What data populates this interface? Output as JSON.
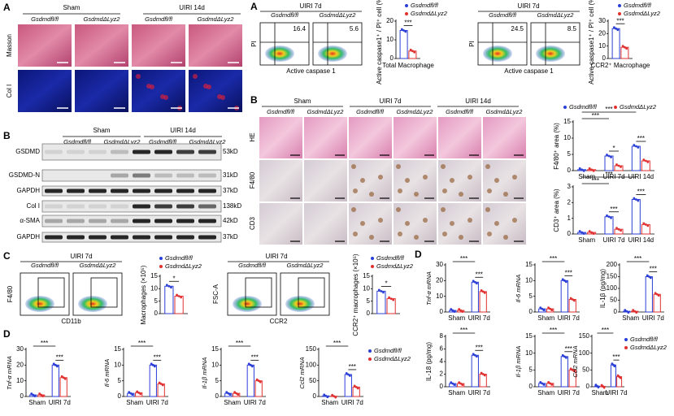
{
  "panel_labels": [
    "A",
    "A",
    "B",
    "B",
    "C",
    "D",
    "D"
  ],
  "masson": {
    "groups": [
      "Sham",
      "UIRI 14d"
    ],
    "genotypes": [
      "Gsdmdfl/fl",
      "GsdmdΔLyz2",
      "Gsdmdfl/fl",
      "GsdmdΔLyz2"
    ],
    "rows": [
      "Masson",
      "Col I"
    ]
  },
  "blot": {
    "groups": [
      "Sham",
      "UIRI 14d"
    ],
    "genotypes": [
      "Gsdmdfl/fl",
      "GsdmdΔLyz2",
      "Gsdmdfl/fl",
      "GsdmdΔLyz2"
    ],
    "rows": [
      {
        "label": "GSDMD",
        "size": "53kD"
      },
      {
        "label": "GSDMD-N",
        "size": "31kD"
      },
      {
        "label": "GAPDH",
        "size": "37kD"
      },
      {
        "label": "Col I",
        "size": "138kD"
      },
      {
        "label": "α-SMA",
        "size": "42kD"
      },
      {
        "label": "GAPDH",
        "size": "37kD"
      }
    ]
  },
  "flow": [
    {
      "title": "UIRI 7d",
      "genotypes": [
        "Gsdmdfl/fl",
        "GsdmdΔLyz2"
      ],
      "y_label": "PI",
      "x_label": "Active caspase 1",
      "gate_values": [
        16.4,
        5.6
      ]
    },
    {
      "title": "UIRI 7d",
      "genotypes": [
        "Gsdmdfl/fl",
        "GsdmdΔLyz2"
      ],
      "y_label": "PI",
      "x_label": "Active caspase 1",
      "gate_values": [
        24.5,
        8.5
      ]
    },
    {
      "title": "UIRI 7d",
      "genotypes": [
        "Gsdmdfl/fl",
        "GsdmdΔLyz2"
      ],
      "y_label": "F4/80",
      "x_label": "CD11b"
    },
    {
      "title": "UIRI 7d",
      "genotypes": [
        "Gsdmdfl/fl",
        "GsdmdΔLyz2"
      ],
      "y_label": "FSC-A",
      "x_label": "CCR2"
    }
  ],
  "histology": {
    "groups": [
      "Sham",
      "UIRI 7d",
      "UIRI 14d"
    ],
    "genotypes": [
      "Gsdmdfl/fl",
      "GsdmdΔLyz2",
      "Gsdmdfl/fl",
      "GsdmdΔLyz2",
      "Gsdmdfl/fl",
      "GsdmdΔLyz2"
    ],
    "rows": [
      "HE",
      "F4/80",
      "CD3"
    ]
  },
  "chart_data": [
    {
      "type": "bar",
      "y_label": "Active caspase1⁺ / PI⁺ cell (%)",
      "x_label": "Total Macrophage",
      "categories": [
        null
      ],
      "series": [
        {
          "name": "Gsdmdfl/fl",
          "color": "#2b3fd6",
          "values": [
            15
          ]
        },
        {
          "name": "GsdmdΔLyz2",
          "color": "#e03030",
          "values": [
            4
          ]
        }
      ],
      "ylim": [
        0,
        20
      ],
      "yticks": [
        0,
        10,
        20
      ],
      "annotations": [
        "***"
      ],
      "legend": "top"
    },
    {
      "type": "bar",
      "y_label": "Active caspase1⁺ / PI⁺ cell (%)",
      "x_label": "CCR2⁺ Macrophage",
      "categories": [
        null
      ],
      "series": [
        {
          "name": "Gsdmdfl/fl",
          "color": "#2b3fd6",
          "values": [
            24
          ]
        },
        {
          "name": "GsdmdΔLyz2",
          "color": "#e03030",
          "values": [
            9
          ]
        }
      ],
      "ylim": [
        0,
        30
      ],
      "yticks": [
        0,
        10,
        20,
        30
      ],
      "annotations": [
        "***"
      ],
      "legend": "top"
    },
    {
      "type": "bar",
      "y_label": "F4/80⁺ area (%)",
      "categories": [
        "Sham",
        "UIRI 7d",
        "UIRI 14d"
      ],
      "series": [
        {
          "name": "Gsdmdfl/fl",
          "color": "#2b3fd6",
          "values": [
            0.3,
            4.5,
            7.5
          ]
        },
        {
          "name": "GsdmdΔLyz2",
          "color": "#e03030",
          "values": [
            0.3,
            1.5,
            3
          ]
        }
      ],
      "ylim": [
        0,
        15
      ],
      "yticks": [
        0,
        5,
        10,
        15
      ],
      "annotations": [
        "***",
        "***",
        "*",
        "***"
      ],
      "legend": "top"
    },
    {
      "type": "bar",
      "y_label": "CD3⁺ area (%)",
      "categories": [
        "Sham",
        "UIRI 7d",
        "UIRI 14d"
      ],
      "series": [
        {
          "color": "#2b3fd6",
          "values": [
            0.1,
            1.1,
            2.2
          ]
        },
        {
          "color": "#e03030",
          "values": [
            0.1,
            0.3,
            0.6
          ]
        }
      ],
      "ylim": [
        0,
        3
      ],
      "yticks": [
        0,
        1,
        2,
        3
      ],
      "annotations": [
        "***",
        "***",
        "***",
        "***"
      ]
    },
    {
      "type": "bar",
      "y_label": "Macrophages (×10⁵)",
      "categories": [
        null
      ],
      "series": [
        {
          "name": "Gsdmdfl/fl",
          "color": "#2b3fd6",
          "values": [
            11
          ]
        },
        {
          "name": "GsdmdΔLyz2",
          "color": "#e03030",
          "values": [
            7
          ]
        }
      ],
      "ylim": [
        0,
        15
      ],
      "yticks": [
        0,
        5,
        10,
        15
      ],
      "annotations": [
        "*"
      ],
      "legend": "top"
    },
    {
      "type": "bar",
      "y_label": "CCR2⁺ macrophages (×10⁵)",
      "categories": [
        null
      ],
      "series": [
        {
          "name": "Gsdmdfl/fl",
          "color": "#2b3fd6",
          "values": [
            9
          ]
        },
        {
          "name": "GsdmdΔLyz2",
          "color": "#e03030",
          "values": [
            6
          ]
        }
      ],
      "ylim": [
        0,
        15
      ],
      "yticks": [
        0,
        5,
        10,
        15
      ],
      "annotations": [
        "*"
      ],
      "legend": "top"
    },
    {
      "type": "bar",
      "y_label": "Tnf-α mRNA",
      "categories": [
        "Sham",
        "UIRI 7d"
      ],
      "series": [
        {
          "color": "#2b3fd6",
          "values": [
            1,
            20
          ]
        },
        {
          "color": "#e03030",
          "values": [
            1,
            12
          ]
        }
      ],
      "ylim": [
        0,
        30
      ],
      "yticks": [
        0,
        10,
        20,
        30
      ],
      "annotations": [
        "***",
        "***"
      ]
    },
    {
      "type": "bar",
      "y_label": "Il-6 mRNA",
      "categories": [
        "Sham",
        "UIRI 7d"
      ],
      "series": [
        {
          "color": "#2b3fd6",
          "values": [
            1,
            10
          ]
        },
        {
          "color": "#e03030",
          "values": [
            1.2,
            4
          ]
        }
      ],
      "ylim": [
        0,
        15
      ],
      "yticks": [
        0,
        5,
        10,
        15
      ],
      "annotations": [
        "***",
        "***"
      ]
    },
    {
      "type": "bar",
      "y_label": "Il-1β mRNA",
      "categories": [
        "Sham",
        "UIRI 7d"
      ],
      "series": [
        {
          "color": "#2b3fd6",
          "values": [
            1,
            10
          ]
        },
        {
          "color": "#e03030",
          "values": [
            1,
            5
          ]
        }
      ],
      "ylim": [
        0,
        15
      ],
      "yticks": [
        0,
        5,
        10,
        15
      ],
      "annotations": [
        "***",
        "***"
      ]
    },
    {
      "type": "bar",
      "y_label": "Ccl2 mRNA",
      "categories": [
        "Sham",
        "UIRI 7d"
      ],
      "series": [
        {
          "name": "Gsdmdfl/fl",
          "color": "#2b3fd6",
          "values": [
            2,
            70
          ]
        },
        {
          "name": "GsdmdΔLyz2",
          "color": "#e03030",
          "values": [
            1,
            30
          ]
        }
      ],
      "ylim": [
        0,
        150
      ],
      "yticks": [
        0,
        50,
        100,
        150
      ],
      "annotations": [
        "***",
        "***"
      ],
      "legend": "right"
    },
    {
      "type": "bar",
      "y_label": "Tnf-α mRNA",
      "categories": [
        "Sham",
        "UIRI 7d"
      ],
      "series": [
        {
          "color": "#2b3fd6",
          "values": [
            1,
            19
          ]
        },
        {
          "color": "#e03030",
          "values": [
            1,
            13
          ]
        }
      ],
      "ylim": [
        0,
        30
      ],
      "yticks": [
        0,
        10,
        20,
        30
      ],
      "annotations": [
        "***",
        "***"
      ]
    },
    {
      "type": "bar",
      "y_label": "Il-6 mRNA",
      "categories": [
        "Sham",
        "UIRI 7d"
      ],
      "series": [
        {
          "color": "#2b3fd6",
          "values": [
            1,
            10
          ]
        },
        {
          "color": "#e03030",
          "values": [
            1,
            4
          ]
        }
      ],
      "ylim": [
        0,
        15
      ],
      "yticks": [
        0,
        5,
        10,
        15
      ],
      "annotations": [
        "***",
        "***"
      ]
    },
    {
      "type": "bar",
      "y_label": "IL-1β (pg/mg)",
      "categories": [
        "Sham",
        "UIRI 7d"
      ],
      "series": [
        {
          "color": "#2b3fd6",
          "values": [
            3,
            150
          ]
        },
        {
          "color": "#e03030",
          "values": [
            3,
            75
          ]
        }
      ],
      "ylim": [
        0,
        200
      ],
      "yticks": [
        0,
        50,
        100,
        150,
        200
      ],
      "annotations": [
        "***",
        "***"
      ]
    },
    {
      "type": "bar",
      "y_label": "IL-18 (pg/mg)",
      "categories": [
        "Sham",
        "UIRI 7d"
      ],
      "series": [
        {
          "color": "#2b3fd6",
          "values": [
            0.5,
            5
          ]
        },
        {
          "color": "#e03030",
          "values": [
            0.5,
            2
          ]
        }
      ],
      "ylim": [
        0,
        8
      ],
      "yticks": [
        0,
        2,
        4,
        6,
        8
      ],
      "annotations": [
        "***",
        "***"
      ]
    },
    {
      "type": "bar",
      "y_label": "Il-1β mRNA",
      "categories": [
        "Sham",
        "UIRI 7d"
      ],
      "series": [
        {
          "color": "#2b3fd6",
          "values": [
            1,
            9
          ]
        },
        {
          "color": "#e03030",
          "values": [
            1,
            5
          ]
        }
      ],
      "ylim": [
        0,
        15
      ],
      "yticks": [
        0,
        5,
        10,
        15
      ],
      "annotations": [
        "***",
        "***"
      ]
    },
    {
      "type": "bar",
      "y_label": "Ccl2 mRNA",
      "categories": [
        "Sham",
        "UIRI 7d"
      ],
      "series": [
        {
          "name": "Gsdmdfl/fl",
          "color": "#2b3fd6",
          "values": [
            2,
            65
          ]
        },
        {
          "name": "GsdmdΔLyz2",
          "color": "#e03030",
          "values": [
            1,
            30
          ]
        }
      ],
      "ylim": [
        0,
        150
      ],
      "yticks": [
        0,
        50,
        100,
        150
      ],
      "annotations": [
        "***",
        "***"
      ],
      "legend": "right"
    }
  ]
}
